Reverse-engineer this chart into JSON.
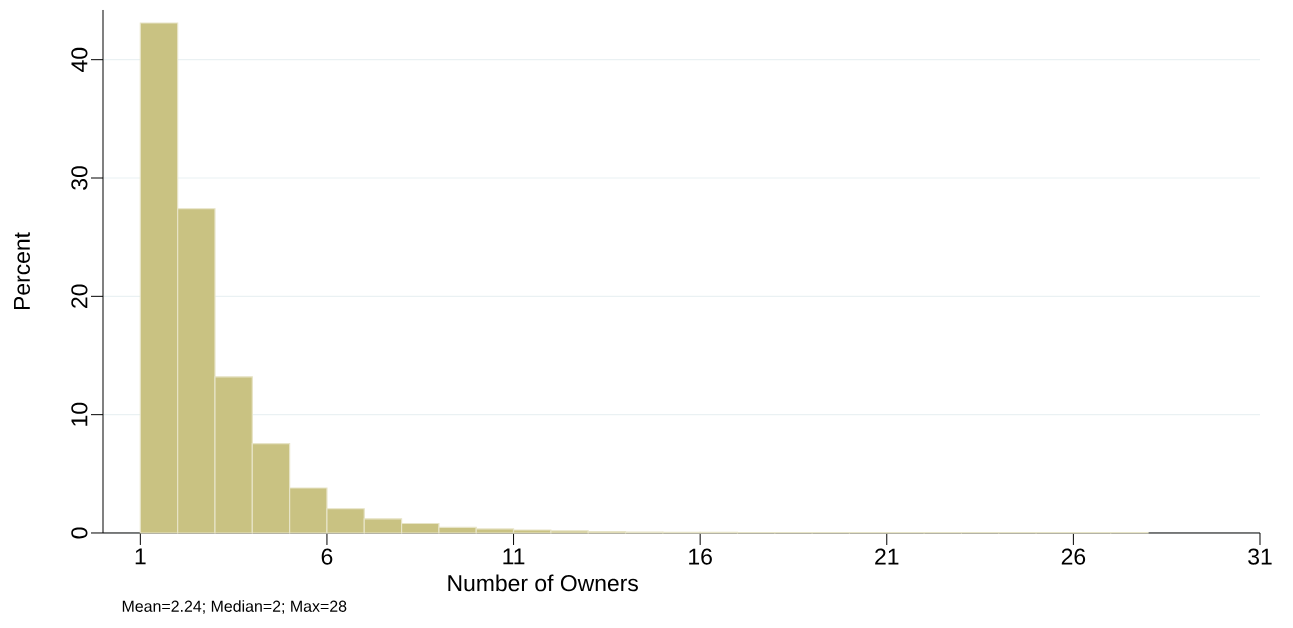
{
  "chart_data": {
    "type": "histogram",
    "xlabel": "Number of Owners",
    "ylabel": "Percent",
    "annotations": [
      "Mean=2.24; Median=2; Max=28"
    ],
    "bins": [
      1,
      2,
      3,
      4,
      5,
      6,
      7,
      8,
      9,
      10,
      11,
      12,
      13,
      14,
      15,
      16,
      17,
      18,
      19,
      20,
      21,
      22,
      23,
      24,
      25,
      26,
      27,
      28
    ],
    "values": [
      43.1,
      27.4,
      13.2,
      7.55,
      3.8,
      2.05,
      1.2,
      0.8,
      0.48,
      0.34,
      0.25,
      0.18,
      0.12,
      0.08,
      0.06,
      0.05,
      0.04,
      0.04,
      0.03,
      0.03,
      0.03,
      0.03,
      0.03,
      0.03,
      0.03,
      0.03,
      0.03
    ],
    "color": "#c9c282",
    "xlim": [
      0,
      31
    ],
    "ylim": [
      0,
      44.2
    ],
    "xticks": [
      1,
      6,
      11,
      16,
      21,
      26,
      31
    ],
    "yticks": [
      0,
      10,
      20,
      30,
      40
    ],
    "grid": "y"
  }
}
